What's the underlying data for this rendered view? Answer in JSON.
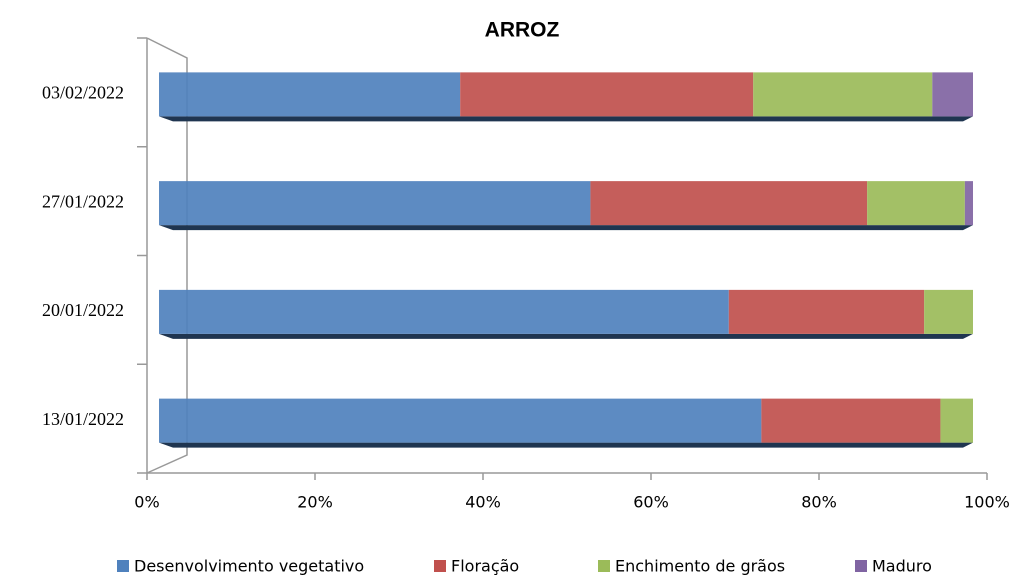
{
  "chart_data": {
    "type": "stacked-bar-horizontal",
    "title": "ARROZ",
    "categories": [
      "03/02/2022",
      "27/01/2022",
      "20/01/2022",
      "13/01/2022"
    ],
    "series": [
      {
        "name": "Desenvolvimento vegetativo",
        "color": "#4f81bd",
        "values": [
          37,
          53,
          70,
          74
        ]
      },
      {
        "name": "Floração",
        "color": "#c0504d",
        "values": [
          36,
          34,
          24,
          22
        ]
      },
      {
        "name": "Enchimento de grãos",
        "color": "#9bbb59",
        "values": [
          22,
          12,
          6,
          4
        ]
      },
      {
        "name": "Maduro",
        "color": "#8064a2",
        "values": [
          5,
          1,
          0,
          0
        ]
      }
    ],
    "xlim": [
      0,
      100
    ],
    "xticks": [
      {
        "value": 0,
        "label": "0%"
      },
      {
        "value": 20,
        "label": "20%"
      },
      {
        "value": 40,
        "label": "40%"
      },
      {
        "value": 60,
        "label": "60%"
      },
      {
        "value": 80,
        "label": "80%"
      },
      {
        "value": 100,
        "label": "100%"
      }
    ],
    "legend": "bottom"
  }
}
